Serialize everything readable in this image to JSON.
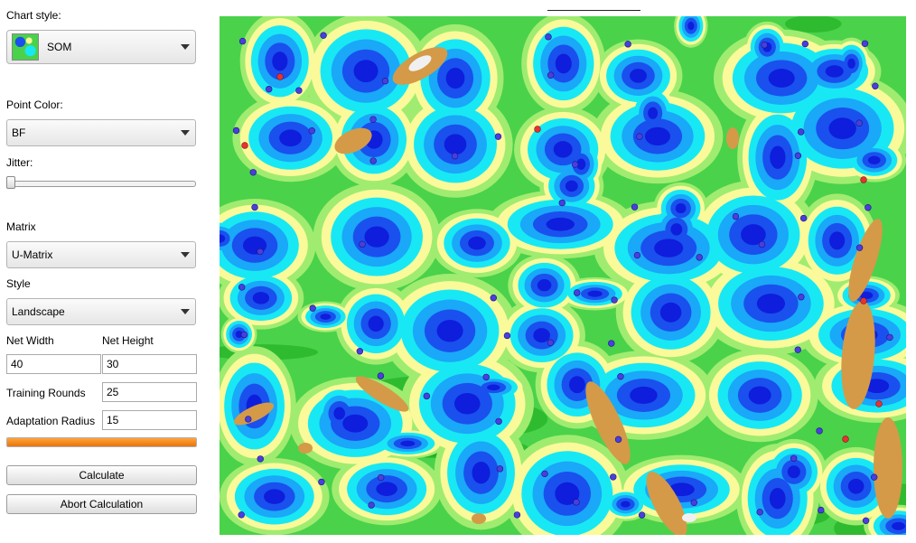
{
  "sidebar": {
    "chart_style_label": "Chart style:",
    "chart_style_value": "SOM",
    "point_color_label": "Point Color:",
    "point_color_value": "BF",
    "jitter_label": "Jitter:",
    "jitter_value": 0,
    "matrix_label": "Matrix",
    "matrix_value": "U-Matrix",
    "style_label": "Style",
    "style_value": "Landscape",
    "net_width_label": "Net Width",
    "net_width_value": "40",
    "net_height_label": "Net Height",
    "net_height_value": "30",
    "training_rounds_label": "Training Rounds",
    "training_rounds_value": "25",
    "adaptation_radius_label": "Adaptation Radius",
    "adaptation_radius_value": "15",
    "progress": 1.0,
    "calculate_label": "Calculate",
    "abort_label": "Abort Calculation"
  },
  "map": {
    "type": "som-landscape",
    "colors": {
      "green": "#4ad24a",
      "dark_green": "#1aa81a",
      "light_green": "#a0ec70",
      "yellow": "#fafa9a",
      "cyan": "#18e8f4",
      "sky_blue": "#1aa8f8",
      "blue": "#1a50ee",
      "deep_blue": "#0e1edc",
      "ochre": "#d49a48",
      "white_peak": "#f0f0f0",
      "point_blue": "#4a3ee0",
      "point_red": "#e83232"
    }
  }
}
